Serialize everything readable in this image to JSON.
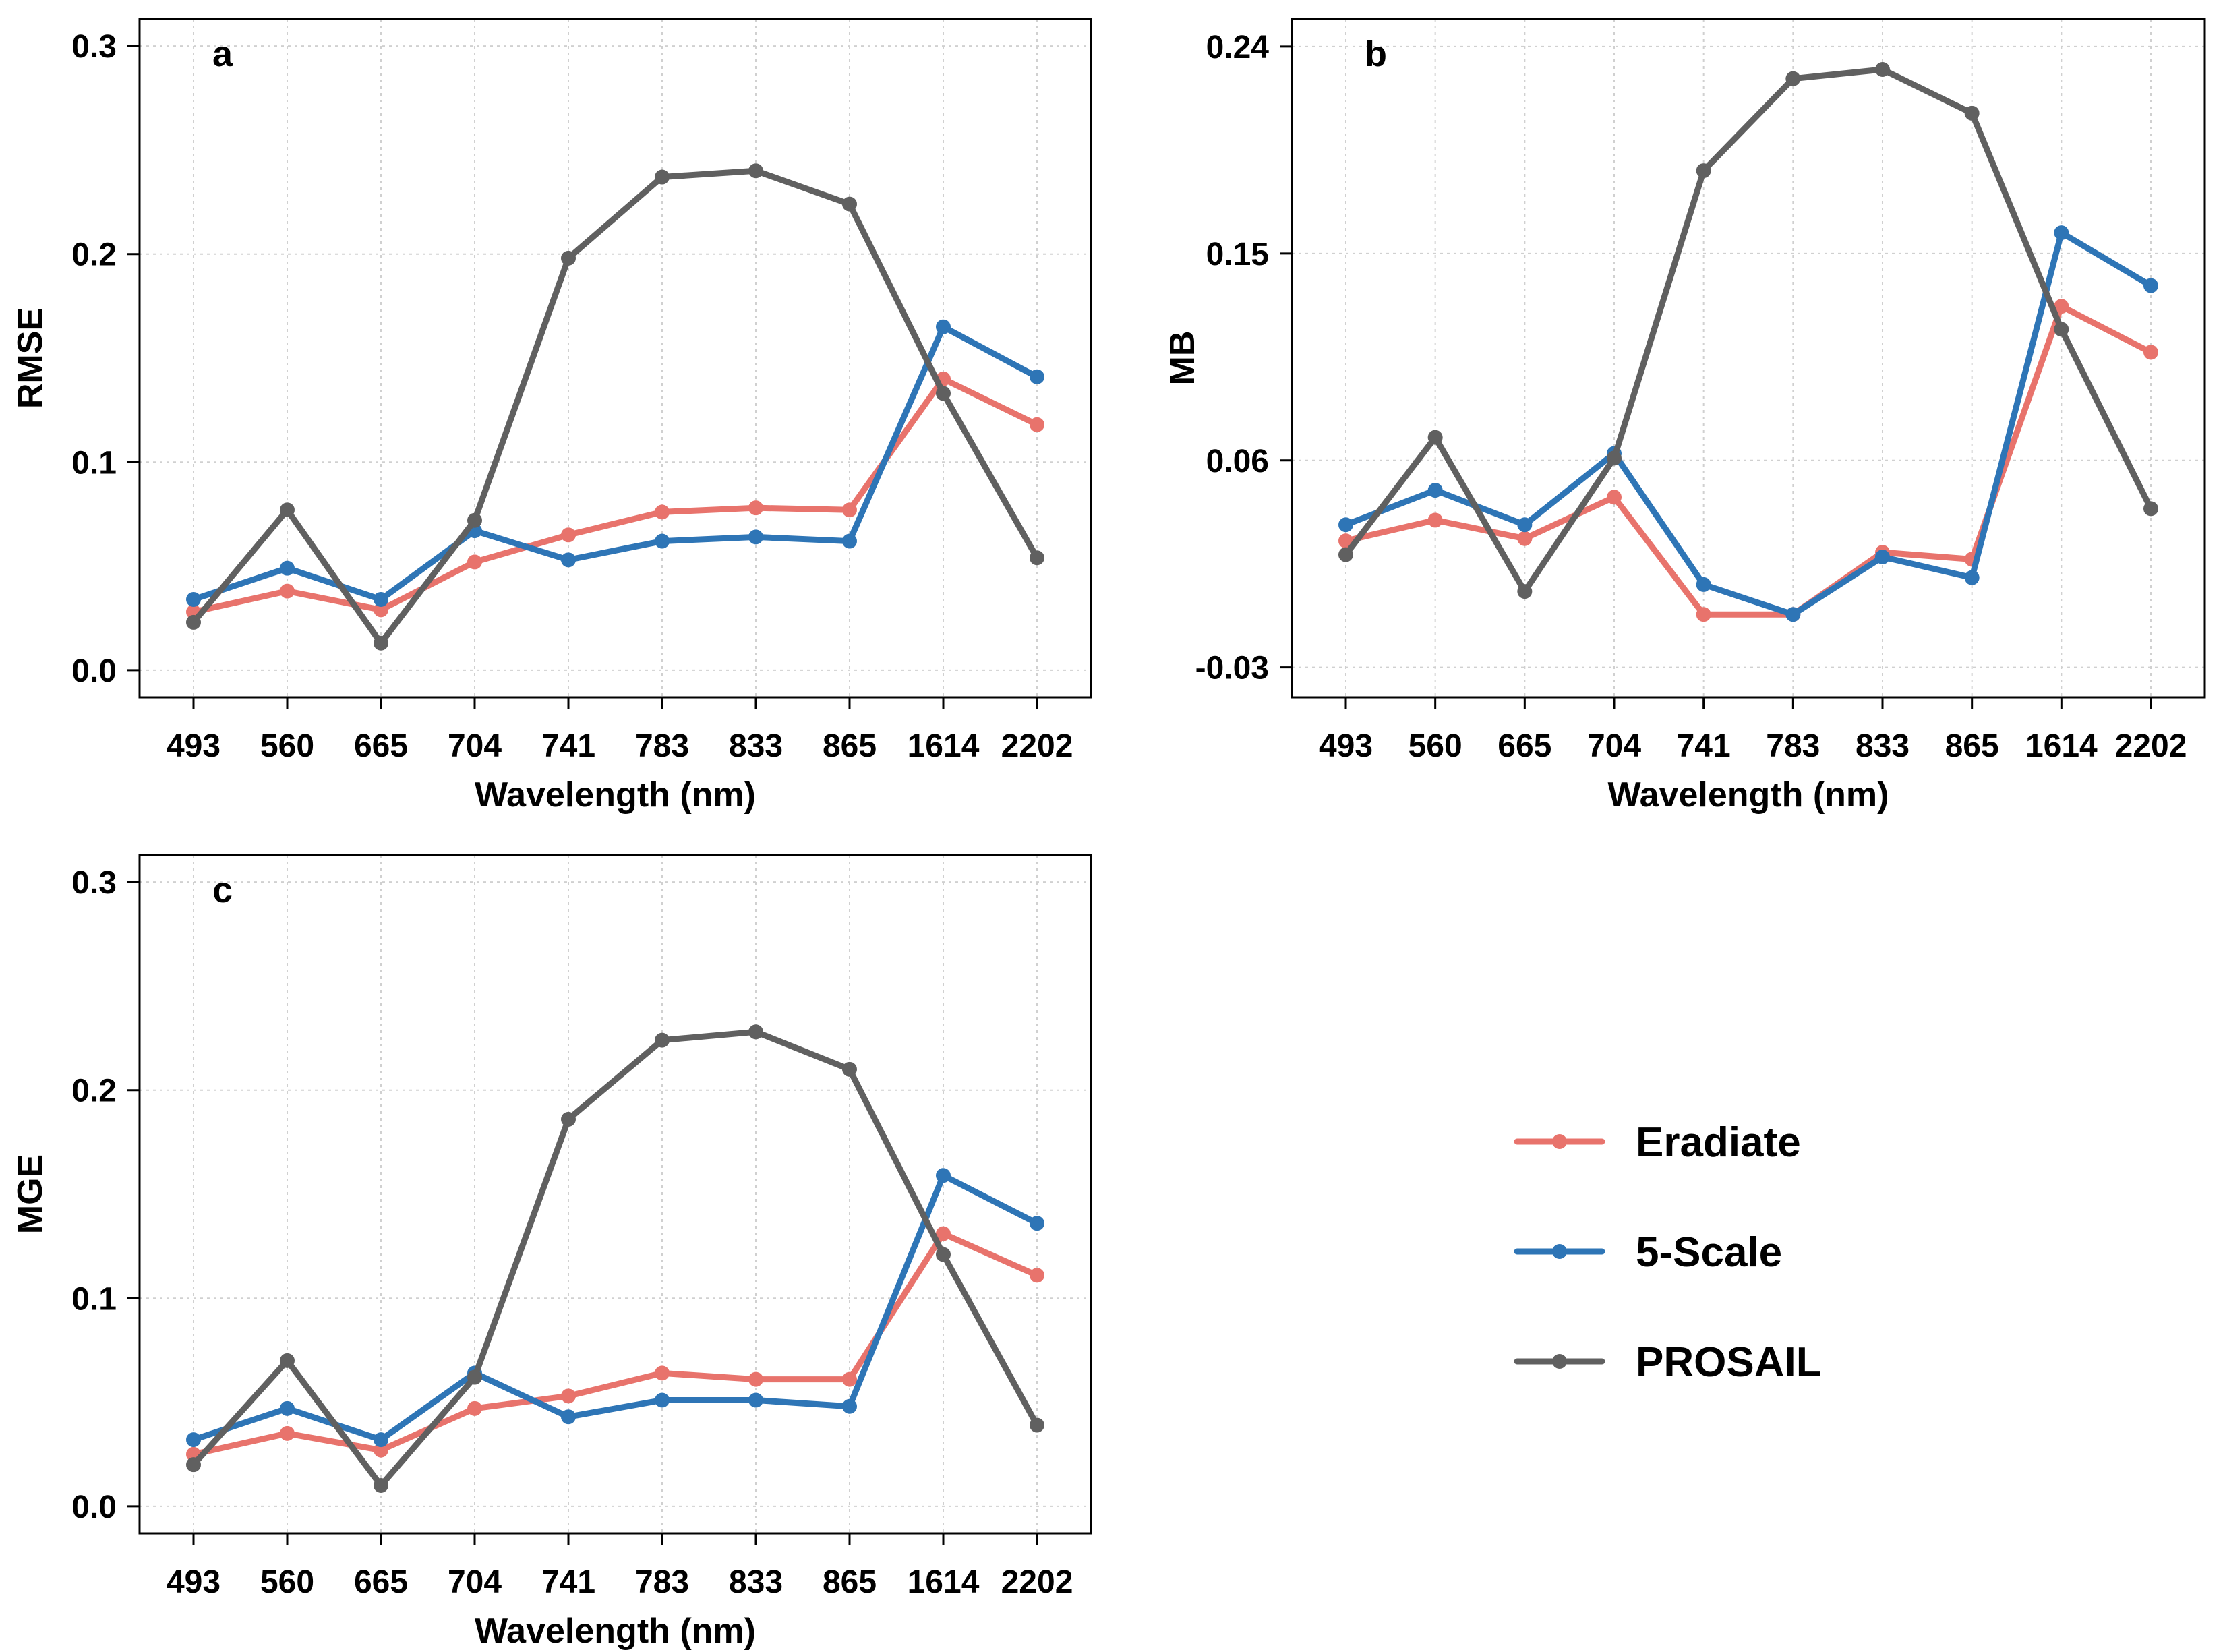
{
  "legend": [
    {
      "name": "Eradiate",
      "color": "#e8736c"
    },
    {
      "name": "5-Scale",
      "color": "#2e75b6"
    },
    {
      "name": "PROSAIL",
      "color": "#606060"
    }
  ],
  "chart_data": [
    {
      "type": "line",
      "panel_label": "a",
      "xlabel": "Wavelength (nm)",
      "ylabel": "RMSE",
      "categories": [
        "493",
        "560",
        "665",
        "704",
        "741",
        "783",
        "833",
        "865",
        "1614",
        "2202"
      ],
      "ylim": [
        -0.013,
        0.313
      ],
      "yticks": [
        0.0,
        0.1,
        0.2,
        0.3
      ],
      "ytick_labels": [
        "0.0",
        "0.1",
        "0.2",
        "0.3"
      ],
      "grid": true,
      "series": [
        {
          "name": "Eradiate",
          "color": "#e8736c",
          "values": [
            0.028,
            0.038,
            0.029,
            0.052,
            0.065,
            0.076,
            0.078,
            0.077,
            0.14,
            0.118
          ]
        },
        {
          "name": "5-Scale",
          "color": "#2e75b6",
          "values": [
            0.034,
            0.049,
            0.034,
            0.067,
            0.053,
            0.062,
            0.064,
            0.062,
            0.165,
            0.141
          ]
        },
        {
          "name": "PROSAIL",
          "color": "#606060",
          "values": [
            0.023,
            0.077,
            0.013,
            0.072,
            0.198,
            0.237,
            0.24,
            0.224,
            0.133,
            0.054
          ]
        }
      ]
    },
    {
      "type": "line",
      "panel_label": "b",
      "xlabel": "Wavelength (nm)",
      "ylabel": "MB",
      "categories": [
        "493",
        "560",
        "665",
        "704",
        "741",
        "783",
        "833",
        "865",
        "1614",
        "2202"
      ],
      "ylim": [
        -0.043,
        0.252
      ],
      "yticks": [
        -0.03,
        0.06,
        0.15,
        0.24
      ],
      "ytick_labels": [
        "-0.03",
        "0.06",
        "0.15",
        "0.24"
      ],
      "grid": true,
      "series": [
        {
          "name": "Eradiate",
          "color": "#e8736c",
          "values": [
            0.025,
            0.034,
            0.026,
            0.044,
            -0.007,
            -0.007,
            0.02,
            0.017,
            0.127,
            0.107
          ]
        },
        {
          "name": "5-Scale",
          "color": "#2e75b6",
          "values": [
            0.032,
            0.047,
            0.032,
            0.063,
            0.006,
            -0.007,
            0.018,
            0.009,
            0.159,
            0.136
          ]
        },
        {
          "name": "PROSAIL",
          "color": "#606060",
          "values": [
            0.019,
            0.07,
            0.003,
            0.061,
            0.186,
            0.226,
            0.23,
            0.211,
            0.117,
            0.039
          ]
        }
      ]
    },
    {
      "type": "line",
      "panel_label": "c",
      "xlabel": "Wavelength (nm)",
      "ylabel": "MGE",
      "categories": [
        "493",
        "560",
        "665",
        "704",
        "741",
        "783",
        "833",
        "865",
        "1614",
        "2202"
      ],
      "ylim": [
        -0.013,
        0.313
      ],
      "yticks": [
        0.0,
        0.1,
        0.2,
        0.3
      ],
      "ytick_labels": [
        "0.0",
        "0.1",
        "0.2",
        "0.3"
      ],
      "grid": true,
      "series": [
        {
          "name": "Eradiate",
          "color": "#e8736c",
          "values": [
            0.025,
            0.035,
            0.027,
            0.047,
            0.053,
            0.064,
            0.061,
            0.061,
            0.131,
            0.111
          ]
        },
        {
          "name": "5-Scale",
          "color": "#2e75b6",
          "values": [
            0.032,
            0.047,
            0.032,
            0.064,
            0.043,
            0.051,
            0.051,
            0.048,
            0.159,
            0.136
          ]
        },
        {
          "name": "PROSAIL",
          "color": "#606060",
          "values": [
            0.02,
            0.07,
            0.01,
            0.062,
            0.186,
            0.224,
            0.228,
            0.21,
            0.121,
            0.039
          ]
        }
      ]
    }
  ]
}
